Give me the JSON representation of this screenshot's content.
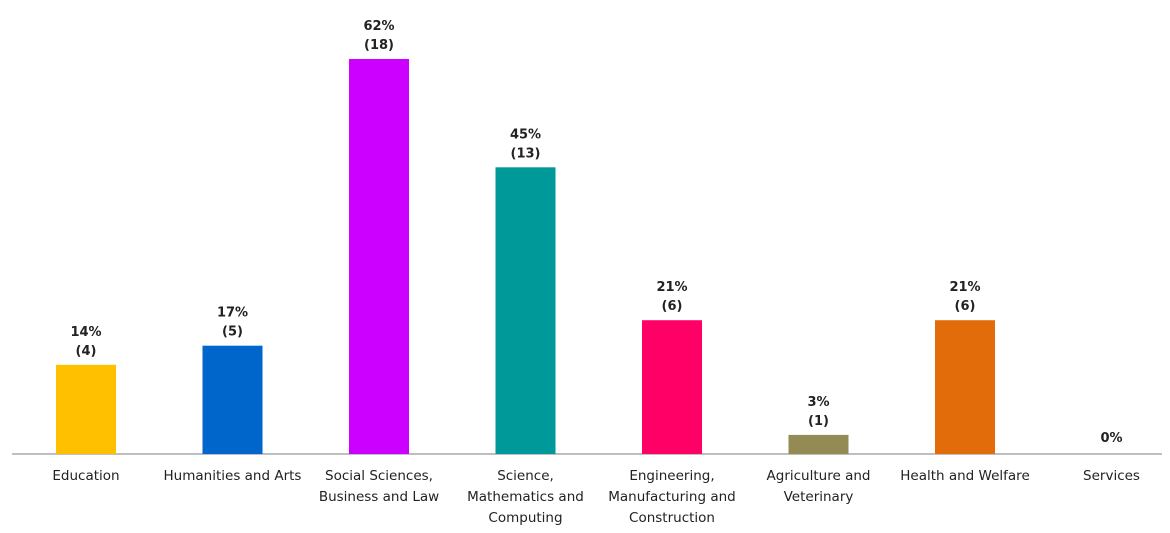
{
  "chart_data": {
    "type": "bar",
    "title": "",
    "xlabel": "",
    "ylabel": "",
    "ylim": [
      0,
      62
    ],
    "grid": false,
    "legend": "none",
    "categories": [
      {
        "lines": [
          "Education"
        ]
      },
      {
        "lines": [
          "Humanities and Arts"
        ]
      },
      {
        "lines": [
          "Social Sciences,",
          "Business and Law"
        ]
      },
      {
        "lines": [
          "Science,",
          "Mathematics and",
          "Computing"
        ]
      },
      {
        "lines": [
          "Engineering,",
          "Manufacturing and",
          "Construction"
        ]
      },
      {
        "lines": [
          "Agriculture and",
          "Veterinary"
        ]
      },
      {
        "lines": [
          "Health and Welfare"
        ]
      },
      {
        "lines": [
          "Services"
        ]
      }
    ],
    "values": [
      14,
      17,
      62,
      45,
      21,
      3,
      21,
      0
    ],
    "counts": [
      4,
      5,
      18,
      13,
      6,
      1,
      6,
      0
    ],
    "percent_labels": [
      "14%",
      "17%",
      "62%",
      "45%",
      "21%",
      "3%",
      "21%",
      "0%"
    ],
    "count_labels": [
      "(4)",
      "(5)",
      "(18)",
      "(13)",
      "(6)",
      "(1)",
      "(6)",
      ""
    ],
    "colors": [
      "#FFC000",
      "#0066CC",
      "#CC00FF",
      "#009999",
      "#FF0066",
      "#948A54",
      "#E36C0A",
      "#999999"
    ]
  }
}
